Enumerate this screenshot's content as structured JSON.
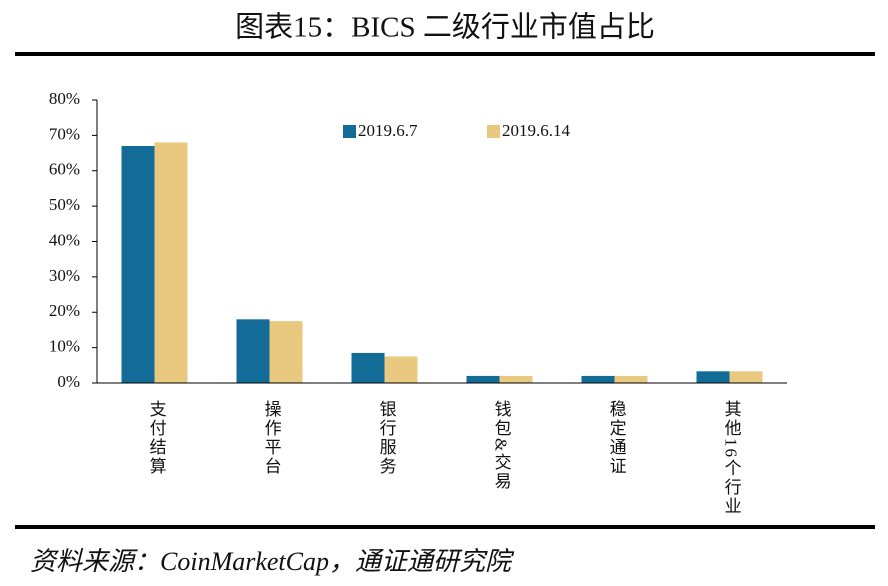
{
  "chart_data": {
    "type": "bar",
    "title": "图表15：BICS 二级行业市值占比",
    "source": "资料来源：CoinMarketCap，通证通研究院",
    "categories": [
      "支付结算",
      "操作平台",
      "银行服务",
      "钱包&交易",
      "稳定通证",
      "其他16个行业"
    ],
    "series": [
      {
        "name": "2019.6.7",
        "color": "#136c97",
        "values": [
          67,
          18,
          8.5,
          2,
          2,
          3.3
        ]
      },
      {
        "name": "2019.6.14",
        "color": "#e9c97f",
        "values": [
          68,
          17.5,
          7.5,
          2,
          2,
          3.3
        ]
      }
    ],
    "ylim": [
      0,
      80
    ],
    "yticks": [
      {
        "value": 0,
        "label": "0%"
      },
      {
        "value": 10,
        "label": "10%"
      },
      {
        "value": 20,
        "label": "20%"
      },
      {
        "value": 30,
        "label": "30%"
      },
      {
        "value": 40,
        "label": "40%"
      },
      {
        "value": 50,
        "label": "50%"
      },
      {
        "value": 60,
        "label": "60%"
      },
      {
        "value": 70,
        "label": "70%"
      },
      {
        "value": 80,
        "label": "80%"
      }
    ]
  }
}
